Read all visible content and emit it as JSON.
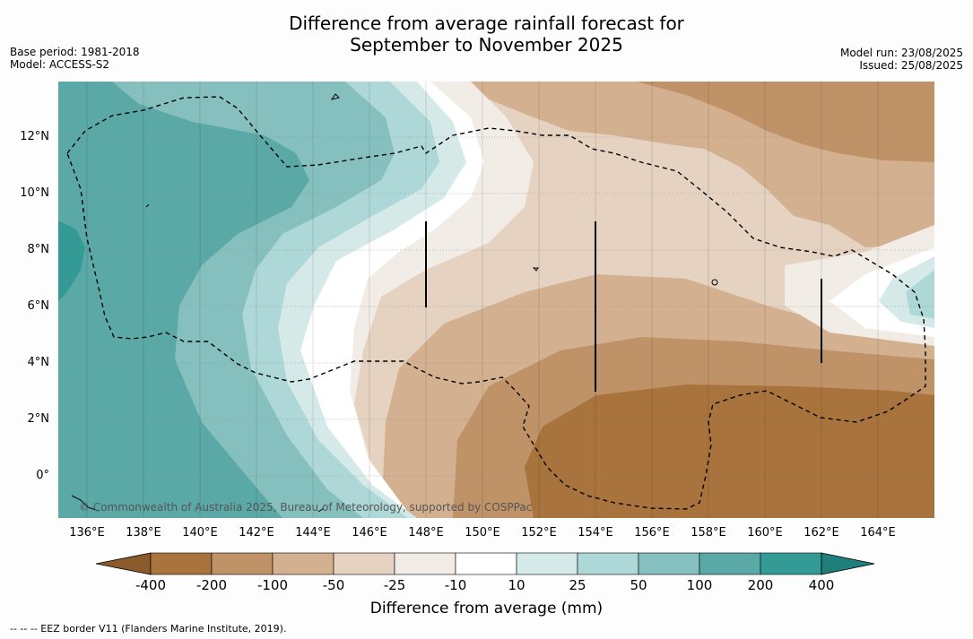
{
  "title_line1": "Difference from average rainfall forecast for",
  "title_line2": "September to November 2025",
  "base_period": "Base period: 1981-2018",
  "model": "Model: ACCESS-S2",
  "model_run": "Model run: 23/08/2025",
  "issued": "Issued: 25/08/2025",
  "lat_labels": [
    "12°N",
    "10°N",
    "8°N",
    "6°N",
    "4°N",
    "2°N",
    "0°"
  ],
  "lon_labels": [
    "136°E",
    "138°E",
    "140°E",
    "142°E",
    "144°E",
    "146°E",
    "148°E",
    "150°E",
    "152°E",
    "154°E",
    "156°E",
    "158°E",
    "160°E",
    "162°E",
    "164°E"
  ],
  "copyright": "© Commonwealth of Australia 2025, Bureau of Meteorology, supported by COSPPac",
  "colorbar": {
    "ticks": [
      "-400",
      "-200",
      "-100",
      "-50",
      "-25",
      "-10",
      "10",
      "25",
      "50",
      "100",
      "200",
      "400"
    ],
    "colors": [
      "#8b5a2b",
      "#a8733c",
      "#c09268",
      "#d3b190",
      "#e5d2c0",
      "#f2ece6",
      "#ffffff",
      "#d5e9e8",
      "#aed8d7",
      "#86c0be",
      "#5ba9a7",
      "#339a95",
      "#1f7f7a"
    ],
    "title": "Difference from average (mm)"
  },
  "footnote": "--  --  -- EEZ border V11 (Flanders Marine Institute, 2019)."
}
